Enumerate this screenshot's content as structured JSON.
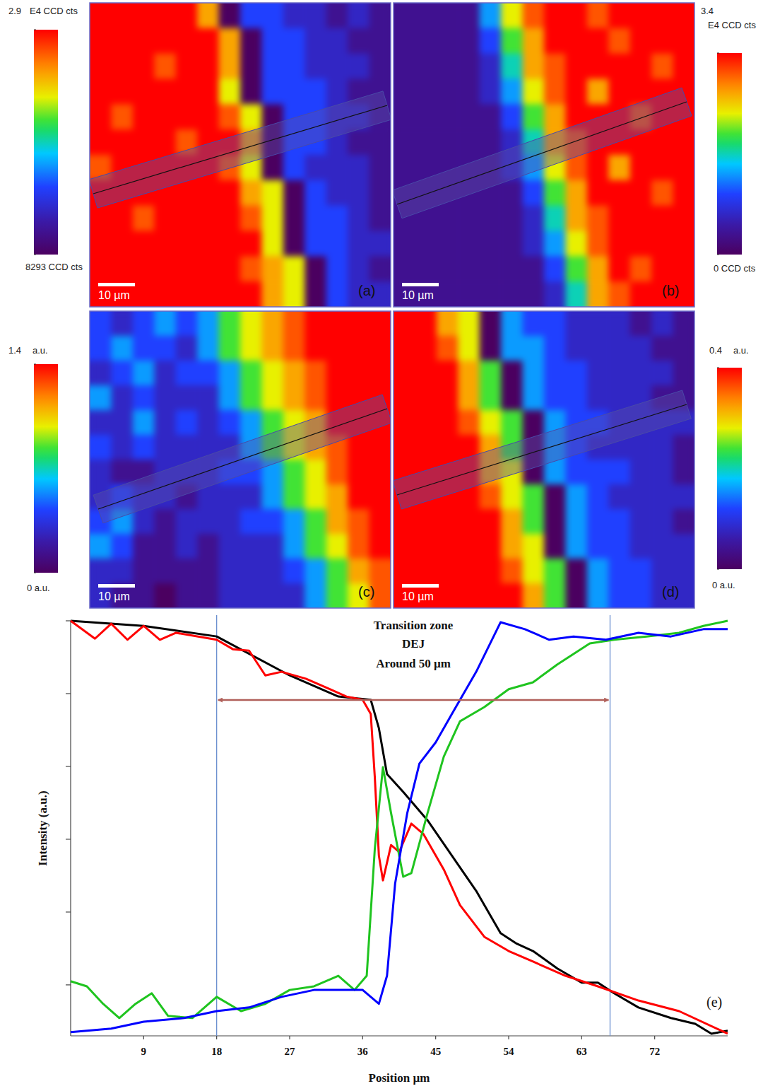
{
  "chart_data": [
    {
      "type": "heatmap",
      "label": "(a)",
      "scale_bar": "10 µm",
      "colorbar": {
        "range": [
          8293,
          29000
        ],
        "ticks": [
          {
            "value": 8293,
            "label": "8293 CCD cts"
          },
          {
            "value": 29000,
            "label": "2.9"
          }
        ],
        "unit": "E4 CCD cts"
      },
      "cells": [
        [
          29000,
          29000,
          29000,
          29000,
          29000,
          24900,
          8300,
          14500,
          14500,
          12400,
          12400,
          10400,
          12400,
          10400
        ],
        [
          29000,
          29000,
          29000,
          29000,
          29000,
          29000,
          24900,
          8300,
          14500,
          14500,
          12400,
          12400,
          10400,
          10400
        ],
        [
          29000,
          29000,
          29000,
          26900,
          29000,
          29000,
          24900,
          8300,
          14500,
          14500,
          12400,
          12400,
          12400,
          10400
        ],
        [
          29000,
          29000,
          29000,
          29000,
          29000,
          29000,
          22800,
          8300,
          14500,
          14500,
          14500,
          12400,
          10400,
          10400
        ],
        [
          29000,
          26900,
          29000,
          29000,
          29000,
          29000,
          26900,
          22800,
          8300,
          14500,
          14500,
          12400,
          12400,
          10400
        ],
        [
          29000,
          29000,
          29000,
          29000,
          26900,
          29000,
          29000,
          24900,
          8300,
          14500,
          14500,
          12400,
          10400,
          10400
        ],
        [
          26900,
          29000,
          29000,
          29000,
          29000,
          29000,
          26900,
          22800,
          8300,
          14500,
          12400,
          12400,
          12400,
          10400
        ],
        [
          29000,
          29000,
          29000,
          29000,
          29000,
          29000,
          29000,
          24900,
          22800,
          8300,
          14500,
          12400,
          12400,
          10400
        ],
        [
          29000,
          29000,
          26900,
          29000,
          29000,
          29000,
          29000,
          26900,
          22800,
          8300,
          14500,
          14500,
          12400,
          10400
        ],
        [
          29000,
          29000,
          29000,
          29000,
          29000,
          29000,
          29000,
          29000,
          22800,
          8300,
          14500,
          14500,
          12400,
          12400
        ],
        [
          29000,
          29000,
          29000,
          29000,
          29000,
          29000,
          29000,
          26900,
          24900,
          22800,
          8300,
          14500,
          12400,
          10400
        ],
        [
          29000,
          29000,
          29000,
          29000,
          29000,
          29000,
          29000,
          29000,
          24900,
          22800,
          8300,
          14500,
          12400,
          12400
        ]
      ]
    },
    {
      "type": "heatmap",
      "label": "(b)",
      "scale_bar": "10 µm",
      "colorbar": {
        "range": [
          0,
          34000
        ],
        "ticks": [
          {
            "value": 0,
            "label": "0 CCD cts"
          },
          {
            "value": 34000,
            "label": "3.4"
          }
        ],
        "unit": "E4 CCD cts"
      },
      "cells": [
        [
          3400,
          3400,
          3400,
          3400,
          13600,
          23800,
          30600,
          34000,
          34000,
          30600,
          34000,
          34000,
          34000,
          34000
        ],
        [
          3400,
          3400,
          3400,
          3400,
          10200,
          20400,
          27200,
          34000,
          34000,
          34000,
          30600,
          34000,
          34000,
          34000
        ],
        [
          3400,
          3400,
          3400,
          3400,
          6800,
          17000,
          27200,
          30600,
          34000,
          34000,
          34000,
          34000,
          30600,
          34000
        ],
        [
          3400,
          3400,
          3400,
          3400,
          6800,
          13600,
          23800,
          30600,
          34000,
          27200,
          34000,
          34000,
          34000,
          34000
        ],
        [
          3400,
          3400,
          3400,
          3400,
          3400,
          10200,
          20400,
          27200,
          34000,
          34000,
          34000,
          30600,
          34000,
          34000
        ],
        [
          3400,
          3400,
          3400,
          3400,
          3400,
          6800,
          17000,
          27200,
          30600,
          34000,
          34000,
          34000,
          34000,
          34000
        ],
        [
          3400,
          3400,
          3400,
          3400,
          3400,
          6800,
          13600,
          23800,
          30600,
          34000,
          27200,
          34000,
          34000,
          34000
        ],
        [
          3400,
          3400,
          3400,
          3400,
          3400,
          3400,
          10200,
          20400,
          27200,
          34000,
          34000,
          34000,
          30600,
          34000
        ],
        [
          3400,
          3400,
          3400,
          3400,
          3400,
          3400,
          6800,
          17000,
          27200,
          30600,
          34000,
          34000,
          34000,
          34000
        ],
        [
          3400,
          3400,
          3400,
          3400,
          3400,
          3400,
          6800,
          13600,
          23800,
          30600,
          34000,
          34000,
          34000,
          34000
        ],
        [
          3400,
          3400,
          3400,
          3400,
          3400,
          3400,
          3400,
          10200,
          20400,
          27200,
          34000,
          30600,
          34000,
          34000
        ],
        [
          3400,
          3400,
          3400,
          3400,
          3400,
          3400,
          3400,
          6800,
          17000,
          27200,
          30600,
          34000,
          34000,
          34000
        ]
      ]
    },
    {
      "type": "heatmap",
      "label": "(c)",
      "scale_bar": "10 µm",
      "colorbar": {
        "range": [
          0,
          1.4
        ],
        "ticks": [
          {
            "value": 0,
            "label": "0 a.u."
          },
          {
            "value": 1.4,
            "label": "1.4"
          }
        ],
        "unit": "a.u."
      },
      "cells": [
        [
          0.42,
          0.28,
          0.42,
          0.56,
          0.42,
          0.56,
          0.84,
          0.98,
          1.12,
          1.26,
          1.4,
          1.4,
          1.4,
          1.4
        ],
        [
          0.42,
          0.56,
          0.42,
          0.42,
          0.28,
          0.56,
          0.84,
          0.98,
          1.12,
          1.26,
          1.4,
          1.4,
          1.4,
          1.4
        ],
        [
          0.28,
          0.42,
          0.56,
          0.28,
          0.42,
          0.42,
          0.56,
          0.84,
          0.98,
          1.12,
          1.26,
          1.4,
          1.4,
          1.4
        ],
        [
          0.56,
          0.28,
          0.42,
          0.28,
          0.28,
          0.28,
          0.56,
          0.84,
          0.98,
          1.12,
          1.26,
          1.4,
          1.4,
          1.4
        ],
        [
          0.28,
          0.28,
          0.56,
          0.28,
          0.42,
          0.28,
          0.42,
          0.56,
          0.84,
          0.98,
          1.12,
          1.4,
          1.4,
          1.4
        ],
        [
          0.42,
          0.28,
          0.42,
          0.28,
          0.28,
          0.28,
          0.28,
          0.56,
          0.84,
          0.98,
          1.12,
          1.26,
          1.4,
          1.4
        ],
        [
          0.28,
          0.14,
          0.14,
          0.28,
          0.28,
          0.28,
          0.42,
          0.42,
          0.56,
          0.84,
          0.98,
          1.26,
          1.4,
          1.4
        ],
        [
          0.28,
          0.42,
          0.28,
          0.28,
          0.14,
          0.28,
          0.28,
          0.28,
          0.56,
          0.84,
          0.98,
          1.12,
          1.4,
          1.4
        ],
        [
          0.42,
          0.56,
          0.28,
          0.14,
          0.28,
          0.28,
          0.28,
          0.42,
          0.42,
          0.56,
          0.84,
          1.12,
          1.26,
          1.4
        ],
        [
          0.56,
          0.42,
          0.14,
          0.14,
          0.28,
          0.14,
          0.28,
          0.28,
          0.28,
          0.56,
          0.84,
          0.98,
          1.26,
          1.4
        ],
        [
          0.28,
          0.28,
          0.14,
          0.14,
          0.14,
          0.14,
          0.28,
          0.28,
          0.28,
          0.42,
          0.56,
          0.84,
          1.12,
          1.26
        ],
        [
          0.28,
          0.14,
          0.14,
          0,
          0.14,
          0.14,
          0.28,
          0.28,
          0.28,
          0.28,
          0.56,
          0.84,
          0.98,
          1.26
        ]
      ]
    },
    {
      "type": "heatmap",
      "label": "(d)",
      "scale_bar": "10 µm",
      "colorbar": {
        "range": [
          0,
          0.4
        ],
        "ticks": [
          {
            "value": 0,
            "label": "0 a.u."
          },
          {
            "value": 0.4,
            "label": "0.4"
          }
        ],
        "unit": "a.u."
      },
      "cells": [
        [
          0.4,
          0.4,
          0.32,
          0.28,
          0,
          0.16,
          0.12,
          0.12,
          0.08,
          0.08,
          0.08,
          0.04,
          0.08,
          0.04
        ],
        [
          0.4,
          0.4,
          0.36,
          0.28,
          0,
          0.16,
          0.16,
          0.12,
          0.08,
          0.08,
          0.08,
          0.08,
          0.04,
          0.04
        ],
        [
          0.4,
          0.4,
          0.4,
          0.32,
          0.24,
          0,
          0.16,
          0.12,
          0.12,
          0.08,
          0.08,
          0.08,
          0.08,
          0.04
        ],
        [
          0.4,
          0.4,
          0.4,
          0.32,
          0.24,
          0,
          0.16,
          0.12,
          0.12,
          0.08,
          0.08,
          0.08,
          0.04,
          0.04
        ],
        [
          0.4,
          0.4,
          0.4,
          0.36,
          0.28,
          0.24,
          0,
          0.16,
          0.12,
          0.12,
          0.08,
          0.08,
          0.08,
          0.08
        ],
        [
          0.4,
          0.4,
          0.4,
          0.4,
          0.32,
          0.24,
          0,
          0.16,
          0.12,
          0.08,
          0.08,
          0.08,
          0.08,
          0.04
        ],
        [
          0.4,
          0.4,
          0.4,
          0.4,
          0.32,
          0.28,
          0,
          0.16,
          0.12,
          0.12,
          0.12,
          0.08,
          0.08,
          0.04
        ],
        [
          0.4,
          0.4,
          0.4,
          0.4,
          0.36,
          0.28,
          0.24,
          0,
          0.16,
          0.12,
          0.08,
          0.08,
          0.08,
          0.08
        ],
        [
          0.4,
          0.4,
          0.4,
          0.4,
          0.4,
          0.32,
          0.24,
          0,
          0.16,
          0.12,
          0.12,
          0.08,
          0.08,
          0.04
        ],
        [
          0.4,
          0.4,
          0.4,
          0.4,
          0.4,
          0.32,
          0.28,
          0,
          0.16,
          0.12,
          0.12,
          0.08,
          0.08,
          0.08
        ],
        [
          0.4,
          0.4,
          0.4,
          0.4,
          0.4,
          0.36,
          0.28,
          0.24,
          0,
          0.16,
          0.12,
          0.12,
          0.08,
          0.08
        ],
        [
          0.4,
          0.4,
          0.4,
          0.4,
          0.4,
          0.4,
          0.32,
          0.24,
          0,
          0.16,
          0.12,
          0.12,
          0.08,
          0.08
        ]
      ]
    },
    {
      "type": "line",
      "label": "(e)",
      "xlabel": "Position µm",
      "ylabel": "Intensity (a.u.)",
      "xlim": [
        0,
        81
      ],
      "xticks": [
        9,
        18,
        27,
        36,
        45,
        54,
        63,
        72
      ],
      "ylim": [
        -0.14,
        1.0
      ],
      "yticks": [
        0,
        0.2,
        0.4,
        0.6,
        0.8,
        1.0
      ],
      "tick_labels": "x",
      "annotation": {
        "text": [
          "Transition zone",
          "DEJ",
          "Around 50 µm"
        ],
        "x": [
          18,
          66.5
        ]
      },
      "series": [
        {
          "color": "#000000",
          "x": [
            0,
            9,
            18,
            27,
            33,
            37,
            38,
            39,
            41,
            44,
            47,
            50,
            53,
            55,
            57,
            60,
            63,
            65,
            67,
            70,
            74,
            77,
            79,
            81
          ],
          "values": [
            1.0,
            0.986,
            0.957,
            0.85,
            0.792,
            0.783,
            0.705,
            0.579,
            0.53,
            0.452,
            0.355,
            0.258,
            0.142,
            0.113,
            0.093,
            0.045,
            0.006,
            0.006,
            -0.023,
            -0.062,
            -0.091,
            -0.107,
            -0.134,
            -0.126
          ]
        },
        {
          "color": "#ff0000",
          "x": [
            0,
            3,
            5,
            7,
            9,
            11,
            13,
            18,
            20,
            22,
            24,
            26,
            29,
            32,
            34,
            36,
            37,
            37.5,
            38,
            38.5,
            39.5,
            40.5,
            42,
            43.5,
            46,
            48,
            51,
            54,
            57,
            61,
            65,
            70,
            75,
            81
          ],
          "values": [
            1.0,
            0.951,
            0.992,
            0.948,
            0.986,
            0.948,
            0.967,
            0.948,
            0.922,
            0.918,
            0.85,
            0.86,
            0.841,
            0.812,
            0.792,
            0.783,
            0.744,
            0.569,
            0.355,
            0.287,
            0.384,
            0.365,
            0.443,
            0.414,
            0.317,
            0.219,
            0.132,
            0.093,
            0.064,
            0.025,
            -0.004,
            -0.043,
            -0.072,
            -0.134
          ]
        },
        {
          "color": "#1fc41f",
          "x": [
            0,
            2,
            4,
            6,
            8,
            10,
            12,
            15,
            18,
            21,
            24,
            27,
            30,
            33,
            35,
            36.5,
            37.5,
            38.5,
            39.5,
            41,
            42,
            44,
            46,
            48,
            51,
            54,
            57,
            60,
            64,
            67,
            71,
            75,
            78,
            81
          ],
          "values": [
            0.01,
            -0.004,
            -0.052,
            -0.091,
            -0.052,
            -0.023,
            -0.085,
            -0.091,
            -0.033,
            -0.072,
            -0.052,
            -0.014,
            -0.004,
            0.025,
            -0.014,
            0.025,
            0.375,
            0.598,
            0.472,
            0.297,
            0.307,
            0.472,
            0.627,
            0.724,
            0.763,
            0.812,
            0.831,
            0.88,
            0.938,
            0.948,
            0.957,
            0.967,
            0.986,
            1.0
          ]
        },
        {
          "color": "#0000ff",
          "x": [
            0,
            5,
            9,
            14,
            18,
            22,
            26,
            30,
            34,
            36,
            38,
            39,
            40,
            41.5,
            43,
            45,
            47,
            50,
            53,
            56,
            59,
            62,
            66,
            70,
            74,
            78,
            81
          ],
          "values": [
            -0.13,
            -0.12,
            -0.101,
            -0.091,
            -0.072,
            -0.062,
            -0.033,
            -0.014,
            -0.014,
            -0.014,
            -0.052,
            0.025,
            0.278,
            0.472,
            0.608,
            0.666,
            0.744,
            0.86,
            0.996,
            0.977,
            0.948,
            0.957,
            0.948,
            0.967,
            0.957,
            0.977,
            0.977
          ]
        }
      ]
    }
  ]
}
